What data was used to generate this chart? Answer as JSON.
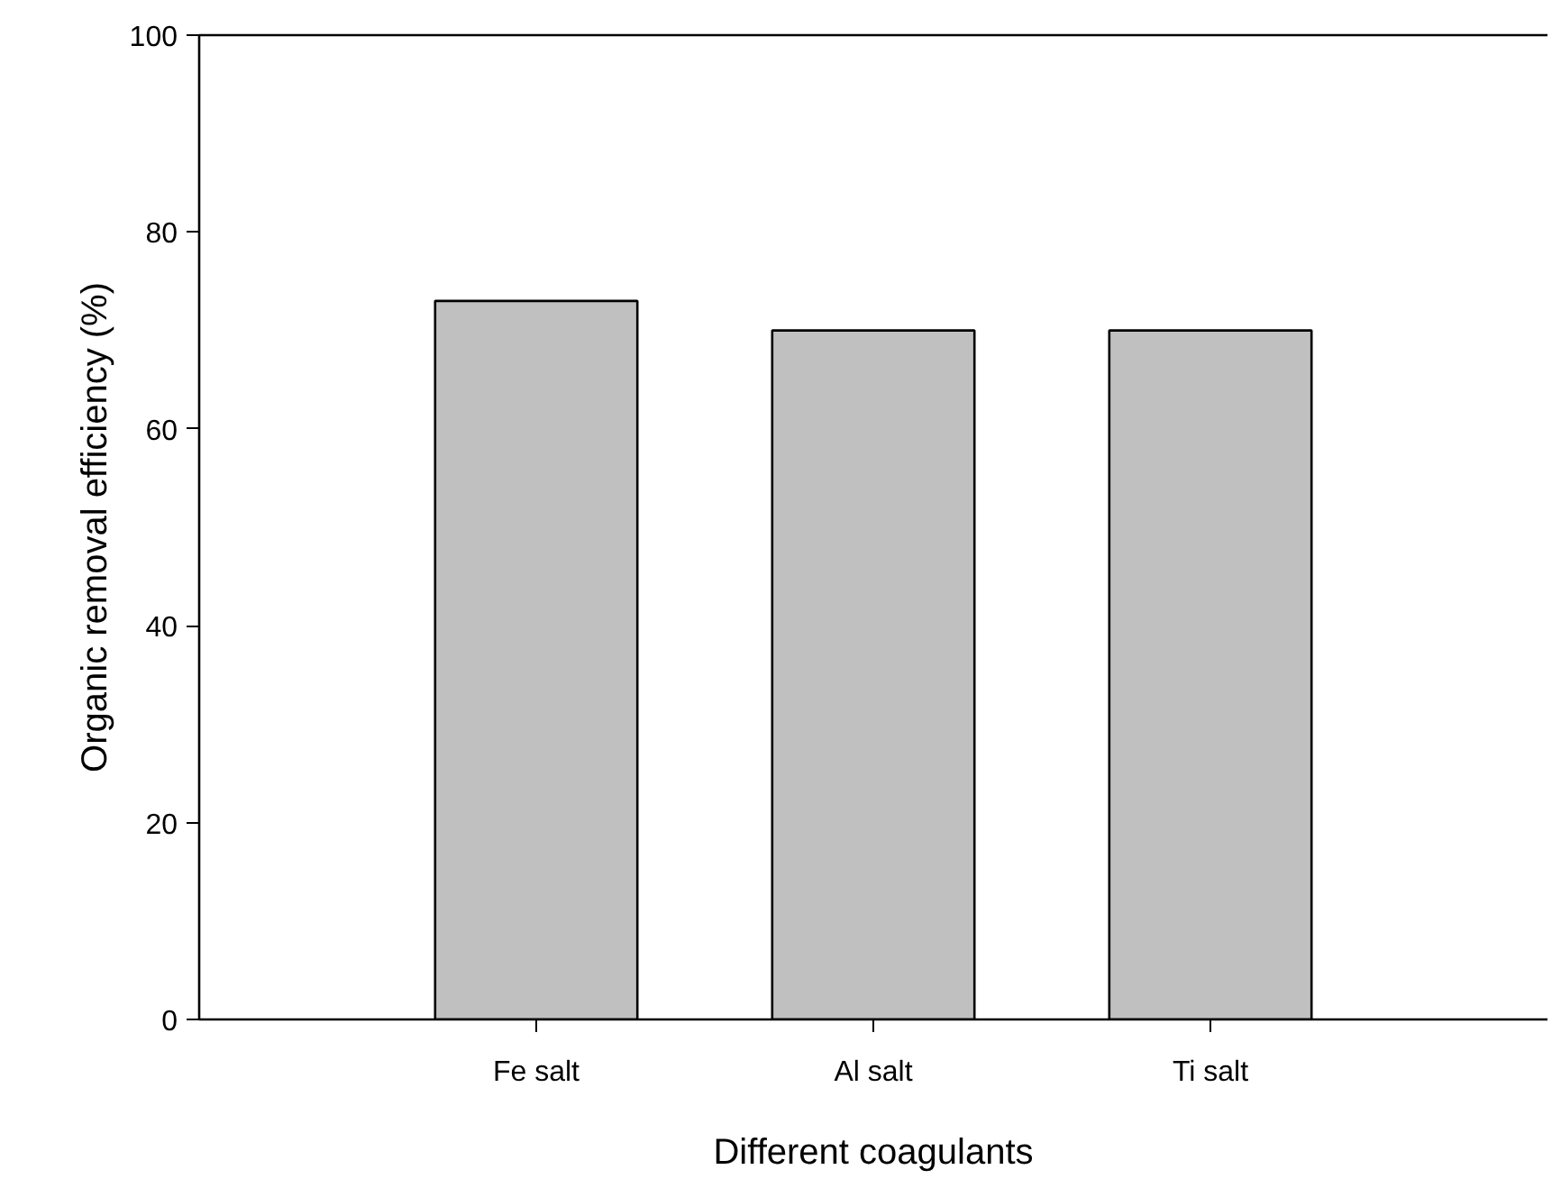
{
  "chart_data": {
    "type": "bar",
    "xlabel": "Different coagulants",
    "ylabel": "Organic removal efficiency (%)",
    "categories": [
      "Fe salt",
      "Al salt",
      "Ti salt"
    ],
    "values": [
      73,
      70,
      70
    ],
    "color": "#c0c0c0",
    "ylim": [
      0,
      100
    ],
    "yticks": [
      0,
      20,
      40,
      60,
      80,
      100
    ],
    "grid": false
  }
}
